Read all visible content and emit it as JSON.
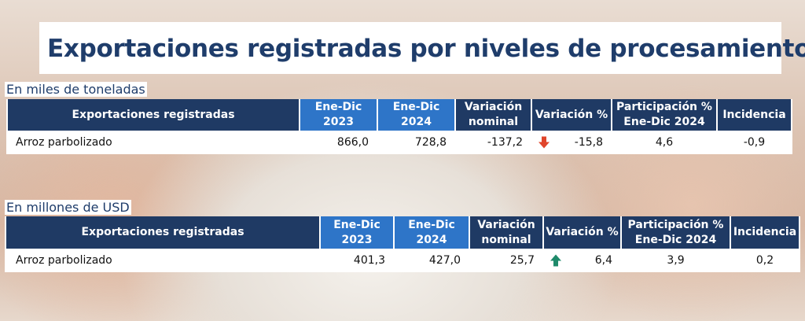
{
  "title": "Exportaciones registradas por niveles de procesamiento.",
  "headers": [
    "Exportaciones registradas",
    "Ene-Dic\n2023",
    "Ene-Dic\n2024",
    "Variación\nnominal",
    "Variación %",
    "Participación %\nEne-Dic 2024",
    "Incidencia"
  ],
  "tables": [
    {
      "unit_label": "En miles de toneladas",
      "row": {
        "product": "Arroz parbolizado",
        "y2023": "866,0",
        "y2024": "728,8",
        "var_nominal": "-137,2",
        "var_pct": "-15,8",
        "trend": "down",
        "participacion": "4,6",
        "incidencia": "-0,9"
      }
    },
    {
      "unit_label": "En millones de USD",
      "row": {
        "product": "Arroz parbolizado",
        "y2023": "401,3",
        "y2024": "427,0",
        "var_nominal": "25,7",
        "var_pct": "6,4",
        "trend": "up",
        "participacion": "3,9",
        "incidencia": "0,2"
      }
    }
  ],
  "colors": {
    "header_dark": "#1f3a64",
    "header_light": "#2e75c8",
    "arrow_down": "#e0452b",
    "arrow_up": "#1e8a6a",
    "title_text": "#1f3d6b"
  },
  "icons": {
    "down": "red-down-arrow-icon",
    "up": "green-up-arrow-icon"
  }
}
